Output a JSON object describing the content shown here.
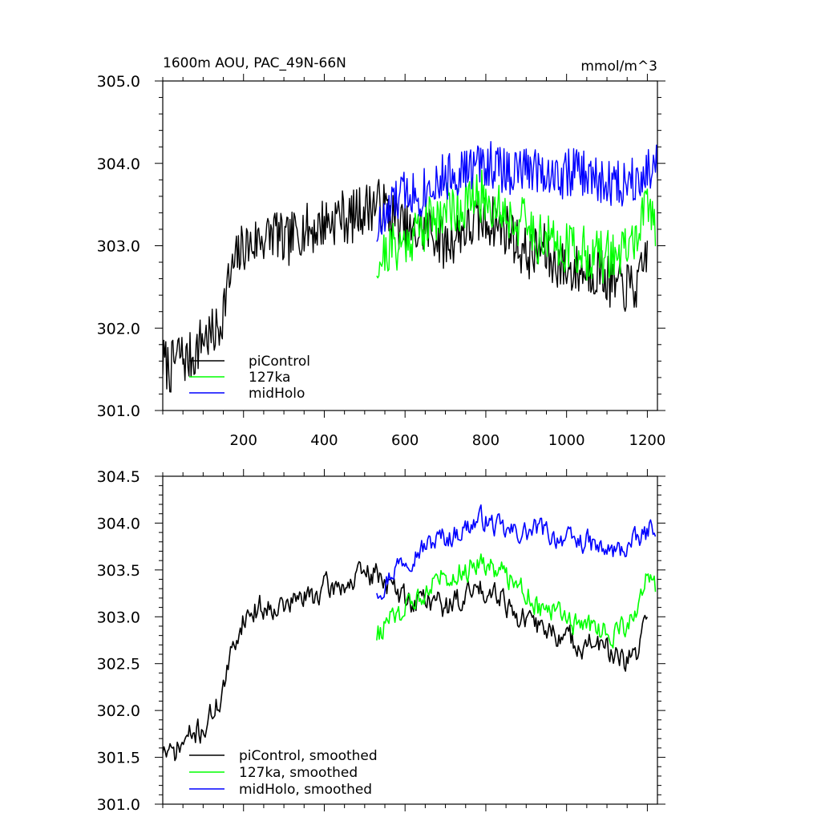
{
  "title_left": "1600m AOU, PAC_49N-66N",
  "title_right": "mmol/m^3",
  "colors": {
    "piControl": "#000000",
    "127ka": "#00ff00",
    "midHolo": "#0000ff"
  },
  "chart_data": [
    {
      "type": "line",
      "panel": "top",
      "xlim": [
        0,
        1225
      ],
      "ylim": [
        301.0,
        305.0
      ],
      "x_ticks": [
        200,
        400,
        600,
        800,
        1000,
        1200
      ],
      "x_tick_labels": [
        "200",
        "400",
        "600",
        "800",
        "1000",
        "1200"
      ],
      "y_ticks": [
        301,
        302,
        303,
        304,
        305
      ],
      "y_tick_labels": [
        "301.0",
        "302.0",
        "303.0",
        "304.0",
        "305.0"
      ],
      "legend": [
        "piControl",
        "127ka",
        "midHolo"
      ],
      "legend_position": "bottom-left",
      "series": [
        {
          "name": "piControl",
          "color": "#000000",
          "x": [
            0,
            20,
            40,
            60,
            80,
            100,
            120,
            140,
            160,
            180,
            200,
            220,
            240,
            260,
            280,
            300,
            320,
            340,
            360,
            380,
            400,
            420,
            440,
            460,
            480,
            500,
            520,
            540,
            560,
            580,
            600,
            620,
            640,
            660,
            680,
            700,
            720,
            740,
            760,
            780,
            800,
            820,
            840,
            860,
            880,
            900,
            920,
            940,
            960,
            980,
            1000,
            1020,
            1040,
            1060,
            1080,
            1100,
            1120,
            1140,
            1160,
            1180,
            1200
          ],
          "values": [
            301.6,
            301.5,
            301.7,
            301.6,
            301.7,
            301.9,
            301.9,
            302.0,
            302.5,
            302.8,
            303.0,
            303.0,
            303.1,
            303.1,
            303.2,
            303.0,
            303.1,
            303.2,
            303.2,
            303.2,
            303.3,
            303.3,
            303.4,
            303.3,
            303.4,
            303.45,
            303.5,
            303.5,
            303.4,
            303.3,
            303.2,
            303.1,
            303.2,
            303.2,
            303.1,
            303.0,
            303.1,
            303.2,
            303.2,
            303.3,
            303.3,
            303.3,
            303.2,
            303.2,
            303.0,
            302.9,
            302.9,
            303.0,
            302.8,
            302.8,
            302.7,
            302.7,
            302.7,
            302.7,
            302.7,
            302.6,
            302.5,
            302.5,
            302.5,
            302.5,
            303.0
          ],
          "noise": 0.32,
          "seed": 7
        },
        {
          "name": "127ka",
          "color": "#00ff00",
          "x": [
            530,
            550,
            570,
            590,
            610,
            630,
            650,
            670,
            690,
            710,
            730,
            750,
            770,
            790,
            810,
            830,
            850,
            870,
            890,
            910,
            930,
            950,
            970,
            990,
            1010,
            1030,
            1050,
            1070,
            1090,
            1110,
            1130,
            1150,
            1170,
            1190,
            1200,
            1220
          ],
          "values": [
            302.8,
            302.9,
            303.0,
            303.0,
            303.1,
            303.2,
            303.25,
            303.35,
            303.4,
            303.5,
            303.45,
            303.5,
            303.55,
            303.6,
            303.5,
            303.5,
            303.4,
            303.3,
            303.3,
            303.2,
            303.1,
            303.1,
            303.0,
            303.0,
            303.0,
            302.95,
            302.9,
            302.9,
            302.85,
            302.9,
            302.9,
            302.95,
            303.1,
            303.3,
            303.5,
            303.3
          ],
          "noise": 0.32,
          "seed": 21
        },
        {
          "name": "midHolo",
          "color": "#0000ff",
          "x": [
            530,
            550,
            570,
            590,
            610,
            630,
            650,
            670,
            690,
            710,
            730,
            750,
            770,
            790,
            810,
            830,
            850,
            870,
            890,
            910,
            930,
            950,
            970,
            990,
            1010,
            1030,
            1050,
            1070,
            1090,
            1110,
            1130,
            1150,
            1170,
            1190,
            1210,
            1225
          ],
          "values": [
            303.2,
            303.3,
            303.5,
            303.6,
            303.7,
            303.6,
            303.7,
            303.8,
            303.8,
            303.85,
            303.9,
            303.9,
            303.95,
            304.0,
            304.0,
            303.95,
            303.9,
            303.9,
            303.9,
            303.95,
            303.95,
            303.9,
            303.85,
            303.85,
            303.9,
            303.9,
            303.85,
            303.8,
            303.75,
            303.75,
            303.75,
            303.8,
            303.85,
            303.9,
            303.95,
            304.0
          ],
          "noise": 0.3,
          "seed": 33
        }
      ]
    },
    {
      "type": "line",
      "panel": "bottom",
      "xlim": [
        0,
        1225
      ],
      "ylim": [
        301.0,
        304.5
      ],
      "x_ticks": [
        200,
        400,
        600,
        800,
        1000,
        1200
      ],
      "y_ticks": [
        301.0,
        301.5,
        302.0,
        302.5,
        303.0,
        303.5,
        304.0,
        304.5
      ],
      "y_tick_labels": [
        "301.0",
        "301.5",
        "302.0",
        "302.5",
        "303.0",
        "303.5",
        "304.0",
        "304.5"
      ],
      "legend": [
        "piControl, smoothed",
        "127ka, smoothed",
        "midHolo, smoothed"
      ],
      "legend_position": "bottom-left",
      "series": [
        {
          "name": "piControl, smoothed",
          "color": "#000000",
          "x": [
            0,
            20,
            40,
            60,
            80,
            100,
            120,
            140,
            160,
            180,
            200,
            220,
            240,
            260,
            280,
            300,
            320,
            340,
            360,
            380,
            400,
            420,
            440,
            460,
            480,
            500,
            520,
            540,
            560,
            580,
            600,
            620,
            640,
            660,
            680,
            700,
            720,
            740,
            760,
            780,
            800,
            820,
            840,
            860,
            880,
            900,
            920,
            940,
            960,
            980,
            1000,
            1020,
            1040,
            1060,
            1080,
            1100,
            1120,
            1140,
            1160,
            1180,
            1200
          ],
          "values": [
            301.6,
            301.5,
            301.6,
            301.7,
            301.75,
            301.8,
            301.95,
            302.1,
            302.4,
            302.75,
            303.0,
            303.05,
            303.1,
            303.1,
            303.15,
            303.1,
            303.15,
            303.2,
            303.2,
            303.25,
            303.3,
            303.3,
            303.35,
            303.35,
            303.4,
            303.45,
            303.45,
            303.45,
            303.35,
            303.25,
            303.2,
            303.15,
            303.2,
            303.2,
            303.15,
            303.1,
            303.15,
            303.2,
            303.25,
            303.3,
            303.3,
            303.3,
            303.25,
            303.1,
            303.0,
            302.95,
            302.9,
            302.9,
            302.85,
            302.8,
            302.75,
            302.75,
            302.7,
            302.7,
            302.7,
            302.65,
            302.55,
            302.5,
            302.55,
            302.6,
            303.1
          ],
          "noise": 0.16,
          "seed": 71
        },
        {
          "name": "127ka, smoothed",
          "color": "#00ff00",
          "x": [
            530,
            550,
            570,
            590,
            610,
            630,
            650,
            670,
            690,
            710,
            730,
            750,
            770,
            790,
            810,
            830,
            850,
            870,
            890,
            910,
            930,
            950,
            970,
            990,
            1010,
            1030,
            1050,
            1070,
            1090,
            1110,
            1130,
            1150,
            1170,
            1190,
            1200,
            1220
          ],
          "values": [
            302.8,
            302.9,
            303.0,
            303.05,
            303.1,
            303.2,
            303.3,
            303.4,
            303.45,
            303.45,
            303.5,
            303.5,
            303.55,
            303.6,
            303.55,
            303.5,
            303.45,
            303.4,
            303.3,
            303.25,
            303.1,
            303.1,
            303.05,
            303.0,
            302.95,
            302.9,
            302.9,
            302.9,
            302.85,
            302.85,
            302.85,
            302.9,
            303.0,
            303.2,
            303.45,
            303.3
          ],
          "noise": 0.15,
          "seed": 85
        },
        {
          "name": "midHolo, smoothed",
          "color": "#0000ff",
          "x": [
            530,
            550,
            570,
            590,
            610,
            630,
            650,
            670,
            690,
            710,
            730,
            750,
            770,
            790,
            810,
            830,
            850,
            870,
            890,
            910,
            930,
            950,
            970,
            990,
            1010,
            1030,
            1050,
            1070,
            1090,
            1110,
            1130,
            1150,
            1170,
            1190,
            1210,
            1220
          ],
          "values": [
            303.3,
            303.35,
            303.5,
            303.6,
            303.65,
            303.7,
            303.75,
            303.8,
            303.85,
            303.85,
            303.9,
            303.95,
            304.0,
            304.05,
            304.0,
            303.95,
            303.9,
            303.9,
            303.9,
            303.9,
            303.95,
            303.9,
            303.85,
            303.85,
            303.8,
            303.8,
            303.8,
            303.75,
            303.7,
            303.7,
            303.7,
            303.75,
            303.8,
            303.85,
            303.95,
            304.0
          ],
          "noise": 0.14,
          "seed": 97
        }
      ]
    }
  ]
}
